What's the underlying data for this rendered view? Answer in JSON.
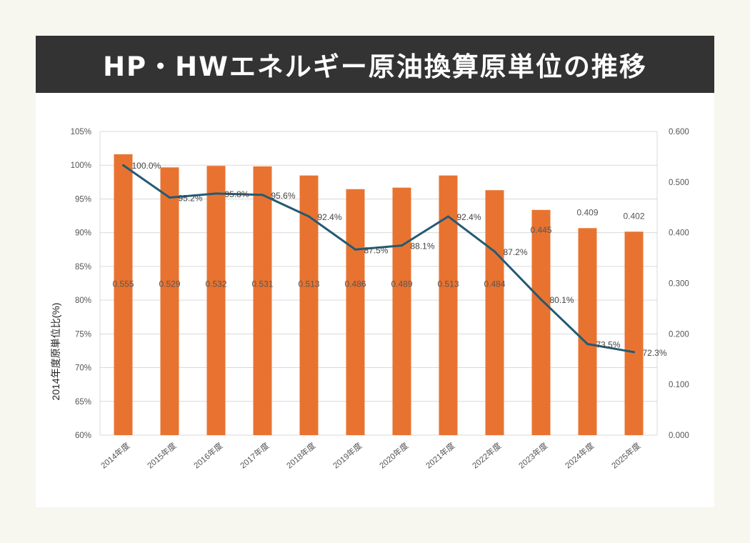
{
  "title": "HP・HWエネルギー原油換算原単位の推移",
  "chart_data": {
    "type": "bar",
    "title": "",
    "categories": [
      "2014年度",
      "2015年度",
      "2016年度",
      "2017年度",
      "2018年度",
      "2019年度",
      "2020年度",
      "2021年度",
      "2022年度",
      "2023年度",
      "2024年度",
      "2025年度"
    ],
    "bar_values": [
      0.555,
      0.529,
      0.532,
      0.531,
      0.513,
      0.486,
      0.489,
      0.513,
      0.484,
      0.445,
      0.409,
      0.402
    ],
    "bar_labels": [
      "0.555",
      "0.529",
      "0.532",
      "0.531",
      "0.513",
      "0.486",
      "0.489",
      "0.513",
      "0.484",
      "0.445",
      "0.409",
      "0.402"
    ],
    "bar_color": "#e87330",
    "line_values": [
      100.0,
      95.2,
      95.8,
      95.6,
      92.4,
      87.5,
      88.1,
      92.4,
      87.2,
      80.1,
      73.5,
      72.3
    ],
    "line_labels": [
      "100.0%",
      "95.2%",
      "95.8%",
      "95.6%",
      "92.4%",
      "87.5%",
      "88.1%",
      "92.4%",
      "87.2%",
      "80.1%",
      "73.5%",
      "72.3%"
    ],
    "line_color": "#245a73",
    "left_axis": {
      "label": "2014年度原単位比(%)",
      "range": [
        60,
        105
      ],
      "ticks": [
        "60%",
        "65%",
        "70%",
        "75%",
        "80%",
        "85%",
        "90%",
        "95%",
        "100%",
        "105%"
      ]
    },
    "right_axis": {
      "label": "",
      "range": [
        0,
        0.6
      ],
      "ticks": [
        "0.000",
        "0.100",
        "0.200",
        "0.300",
        "0.400",
        "0.500",
        "0.600"
      ]
    },
    "grid": true
  }
}
